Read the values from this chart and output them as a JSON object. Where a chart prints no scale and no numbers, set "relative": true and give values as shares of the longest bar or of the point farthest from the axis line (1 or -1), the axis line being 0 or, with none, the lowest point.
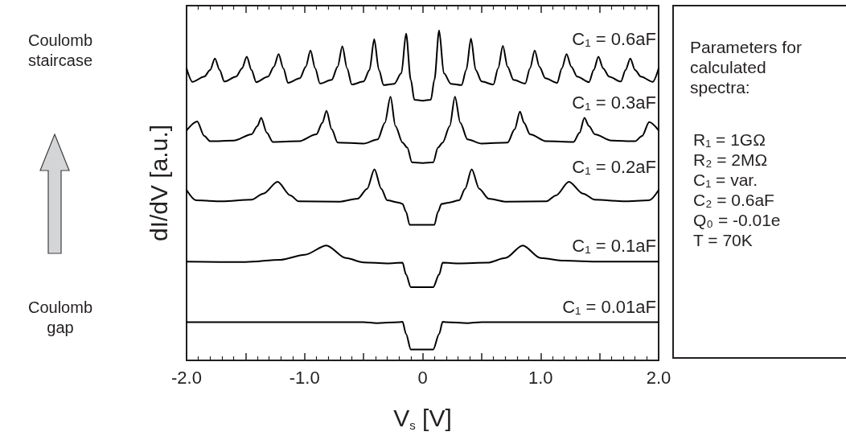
{
  "chart_data": {
    "type": "line",
    "relative": true,
    "xlabel": "V$_{s}$ [V]",
    "ylabel": "dI/dV [a.u.]",
    "xlim": [
      -2,
      2
    ],
    "xticks": [
      {
        "value": -2,
        "label": "-2.0"
      },
      {
        "value": -1.5,
        "label": null
      },
      {
        "value": -1,
        "label": "-1.0"
      },
      {
        "value": -0.5,
        "label": null
      },
      0,
      {
        "value": 0.5,
        "label": null
      },
      {
        "value": 1,
        "label": "1.0"
      },
      {
        "value": 1.5,
        "label": null
      },
      {
        "value": 2,
        "label": "2.0"
      }
    ],
    "grid": false,
    "legend": false,
    "marker": "none",
    "line_style": "solid",
    "annotations": [
      "Coulomb staircase",
      "Coulomb gap",
      "Parameters for calculated spectra:",
      "R₁ = 1GΩ",
      "R₂ = 2MΩ",
      "C₁ = var.",
      "C₂ = 0.6aF",
      "Q₀ = -0.01e",
      "T = 70K"
    ],
    "series": [
      {
        "name": "C₁ = 0.6aF",
        "color": "#000000",
        "x": [
          -2,
          -1.95,
          -1.85,
          -1.8,
          -1.76,
          -1.72,
          -1.68,
          -1.58,
          -1.53,
          -1.49,
          -1.45,
          -1.41,
          -1.31,
          -1.26,
          -1.22,
          -1.18,
          -1.14,
          -1.04,
          -0.99,
          -0.95,
          -0.91,
          -0.87,
          -0.77,
          -0.72,
          -0.68,
          -0.64,
          -0.6,
          -0.5,
          -0.45,
          -0.41,
          -0.37,
          -0.33,
          -0.24,
          -0.18,
          -0.14,
          -0.1,
          -0.07,
          0,
          0.07,
          0.1,
          0.14,
          0.18,
          0.24,
          0.33,
          0.37,
          0.41,
          0.45,
          0.5,
          0.6,
          0.64,
          0.68,
          0.72,
          0.77,
          0.87,
          0.91,
          0.95,
          0.99,
          1.04,
          1.14,
          1.18,
          1.22,
          1.26,
          1.31,
          1.41,
          1.45,
          1.49,
          1.53,
          1.58,
          1.68,
          1.72,
          1.76,
          1.8,
          1.85,
          1.95,
          2
        ],
        "values": [
          0.885,
          0.844,
          0.86,
          0.88,
          0.915,
          0.88,
          0.845,
          0.86,
          0.885,
          0.92,
          0.88,
          0.843,
          0.86,
          0.89,
          0.928,
          0.885,
          0.841,
          0.855,
          0.89,
          0.939,
          0.885,
          0.839,
          0.85,
          0.89,
          0.952,
          0.885,
          0.836,
          0.845,
          0.88,
          0.973,
          0.88,
          0.834,
          0.838,
          0.87,
          0.99,
          0.85,
          0.79,
          0.787,
          0.79,
          0.85,
          1,
          0.87,
          0.838,
          0.834,
          0.88,
          0.975,
          0.88,
          0.845,
          0.836,
          0.885,
          0.953,
          0.89,
          0.85,
          0.839,
          0.885,
          0.939,
          0.89,
          0.855,
          0.841,
          0.885,
          0.928,
          0.89,
          0.86,
          0.843,
          0.88,
          0.92,
          0.885,
          0.86,
          0.845,
          0.88,
          0.915,
          0.88,
          0.86,
          0.844,
          0.885
        ]
      },
      {
        "name": "C₁ = 0.3aF",
        "color": "#000000",
        "x": [
          -2,
          -1.91,
          -1.85,
          -1.8,
          -1.6,
          -1.45,
          -1.4,
          -1.368,
          -1.32,
          -1.27,
          -1.05,
          -0.9,
          -0.85,
          -0.814,
          -0.77,
          -0.72,
          -0.5,
          -0.38,
          -0.32,
          -0.272,
          -0.23,
          -0.17,
          -0.13,
          -0.09,
          0,
          0.09,
          0.13,
          0.17,
          0.23,
          0.274,
          0.32,
          0.38,
          0.5,
          0.72,
          0.78,
          0.825,
          0.86,
          0.91,
          1.05,
          1.28,
          1.33,
          1.371,
          1.41,
          1.46,
          1.6,
          1.8,
          1.86,
          1.92,
          2
        ],
        "values": [
          0.697,
          0.724,
          0.68,
          0.664,
          0.666,
          0.685,
          0.71,
          0.735,
          0.69,
          0.662,
          0.664,
          0.685,
          0.72,
          0.756,
          0.7,
          0.66,
          0.657,
          0.67,
          0.72,
          0.799,
          0.71,
          0.66,
          0.645,
          0.6,
          0.598,
          0.6,
          0.645,
          0.66,
          0.71,
          0.799,
          0.72,
          0.67,
          0.657,
          0.66,
          0.7,
          0.754,
          0.72,
          0.685,
          0.664,
          0.662,
          0.69,
          0.735,
          0.71,
          0.685,
          0.666,
          0.664,
          0.68,
          0.722,
          0.697
        ]
      },
      {
        "name": "C₁ = 0.2aF",
        "color": "#000000",
        "x": [
          -2,
          -1.92,
          -1.7,
          -1.45,
          -1.35,
          -1.229,
          -1.12,
          -1.05,
          -0.7,
          -0.55,
          -0.47,
          -0.408,
          -0.35,
          -0.3,
          -0.2,
          -0.17,
          -0.14,
          -0.11,
          0,
          0.1,
          0.13,
          0.16,
          0.22,
          0.31,
          0.36,
          0.416,
          0.48,
          0.56,
          0.7,
          1.05,
          1.13,
          1.24,
          1.36,
          1.46,
          1.7,
          1.92,
          2
        ],
        "values": [
          0.516,
          0.485,
          0.482,
          0.487,
          0.505,
          0.541,
          0.5,
          0.482,
          0.481,
          0.49,
          0.52,
          0.579,
          0.52,
          0.485,
          0.478,
          0.474,
          0.45,
          0.411,
          0.411,
          0.411,
          0.45,
          0.474,
          0.478,
          0.485,
          0.52,
          0.579,
          0.52,
          0.49,
          0.481,
          0.482,
          0.5,
          0.541,
          0.505,
          0.487,
          0.482,
          0.485,
          0.516
        ]
      },
      {
        "name": "C₁ = 0.1aF",
        "color": "#000000",
        "x": [
          -2,
          -1.5,
          -1.2,
          -1,
          -0.815,
          -0.65,
          -0.5,
          -0.3,
          -0.17,
          -0.14,
          -0.1,
          0.09,
          0.14,
          0.17,
          0.3,
          0.55,
          0.7,
          0.849,
          1,
          1.2,
          1.5,
          2
        ],
        "values": [
          0.299,
          0.298,
          0.305,
          0.32,
          0.348,
          0.31,
          0.297,
          0.294,
          0.296,
          0.26,
          0.222,
          0.222,
          0.26,
          0.296,
          0.294,
          0.296,
          0.31,
          0.348,
          0.31,
          0.302,
          0.299,
          0.299
        ]
      },
      {
        "name": "C₁ = 0.01aF",
        "color": "#000000",
        "x": [
          -2,
          -0.5,
          -0.39,
          -0.2,
          -0.17,
          -0.14,
          -0.1,
          0.09,
          0.14,
          0.17,
          0.2,
          0.38,
          0.5,
          2
        ],
        "values": [
          0.116,
          0.116,
          0.113,
          0.116,
          0.117,
          0.08,
          0.033,
          0.033,
          0.08,
          0.117,
          0.116,
          0.113,
          0.116,
          0.116
        ]
      }
    ]
  }
}
